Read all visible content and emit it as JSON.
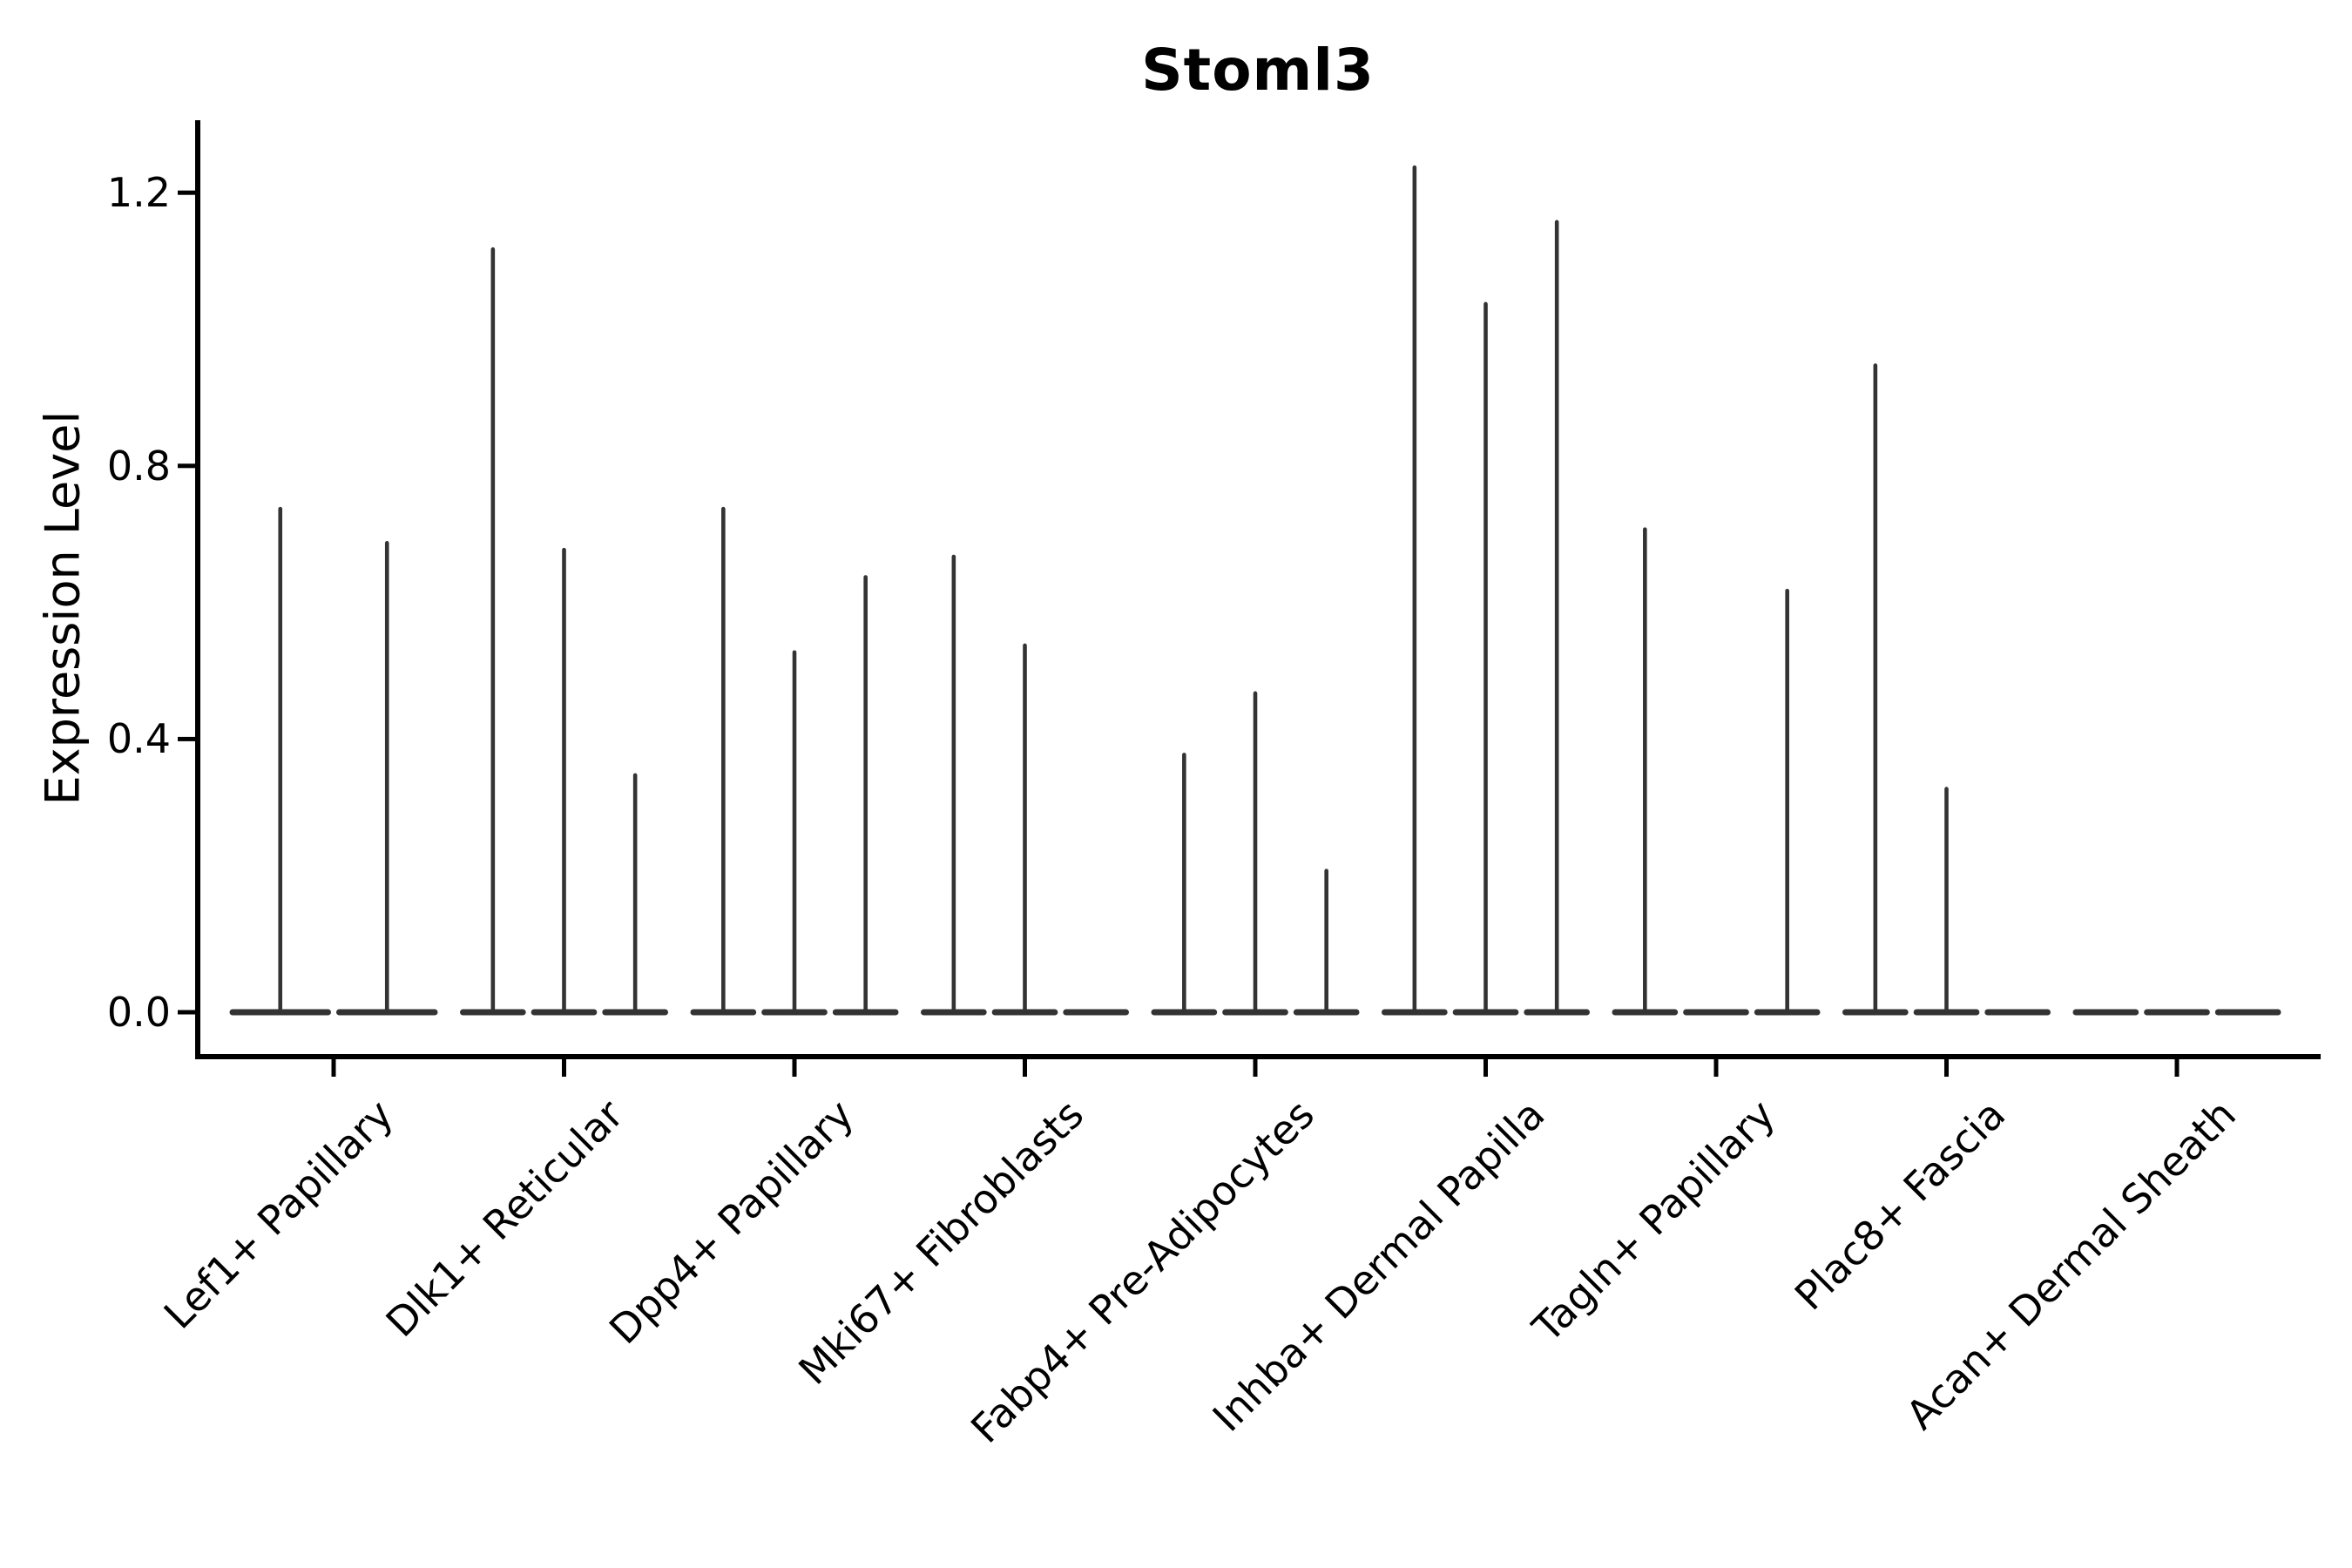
{
  "chart_data": {
    "type": "violin",
    "title": "Stoml3",
    "xlabel": "",
    "ylabel": "Expression Level",
    "ylim": [
      0,
      1.3
    ],
    "yticks": [
      "0.0",
      "0.4",
      "0.8",
      "1.2"
    ],
    "ytick_values": [
      0.0,
      0.4,
      0.8,
      1.2
    ],
    "grid": false,
    "legend_position": "none",
    "background_color": "#ffffff",
    "axis_color": "#000000",
    "violin_color": "#333333",
    "categories": [
      "Lef1+ Papillary",
      "Dlk1+ Reticular",
      "Dpp4+ Papillary",
      "Mki67+ Fibroblasts",
      "Fabp4+ Pre-Adipocytes",
      "Inhba+ Dermal Papilla",
      "Tagln+ Papillary",
      "Plac8+ Fascia",
      "Acan+ Dermal Sheath"
    ],
    "violins": [
      {
        "category": "Lef1+ Papillary",
        "spike_maxima": [
          0.74,
          0.69
        ]
      },
      {
        "category": "Dlk1+ Reticular",
        "spike_maxima": [
          1.12,
          0.68,
          0.35
        ]
      },
      {
        "category": "Dpp4+ Papillary",
        "spike_maxima": [
          0.74,
          0.53,
          0.64
        ]
      },
      {
        "category": "Mki67+ Fibroblasts",
        "spike_maxima": [
          0.67,
          0.54,
          0
        ]
      },
      {
        "category": "Fabp4+ Pre-Adipocytes",
        "spike_maxima": [
          0.38,
          0.47,
          0.21
        ]
      },
      {
        "category": "Inhba+ Dermal Papilla",
        "spike_maxima": [
          1.24,
          1.04,
          1.16
        ]
      },
      {
        "category": "Tagln+ Papillary",
        "spike_maxima": [
          0.71,
          0,
          0.62
        ]
      },
      {
        "category": "Plac8+ Fascia",
        "spike_maxima": [
          0.95,
          0.33,
          0
        ]
      },
      {
        "category": "Acan+ Dermal Sheath",
        "spike_maxima": [
          0,
          0,
          0
        ]
      }
    ]
  }
}
